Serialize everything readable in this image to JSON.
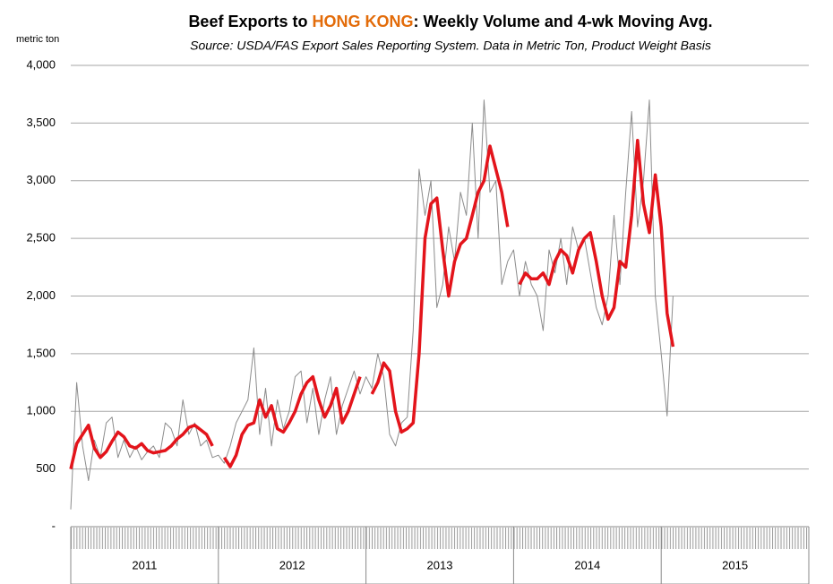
{
  "chart_data": {
    "type": "line",
    "title": [
      "Beef Exports to ",
      "HONG KONG",
      ":  Weekly Volume and 4-wk Moving Avg."
    ],
    "subtitle": "Source: USDA/FAS Export Sales Reporting System.  Data in Metric Ton, Product Weight Basis",
    "y_label": "metric ton",
    "x": [
      2011,
      2011.04,
      2011.08,
      2011.12,
      2011.16,
      2011.2,
      2011.24,
      2011.28,
      2011.32,
      2011.36,
      2011.4,
      2011.44,
      2011.48,
      2011.52,
      2011.56,
      2011.6,
      2011.64,
      2011.68,
      2011.72,
      2011.76,
      2011.8,
      2011.84,
      2011.88,
      2011.92,
      2011.96,
      2012,
      2012.04,
      2012.08,
      2012.12,
      2012.16,
      2012.2,
      2012.24,
      2012.28,
      2012.32,
      2012.36,
      2012.4,
      2012.44,
      2012.48,
      2012.52,
      2012.56,
      2012.6,
      2012.64,
      2012.68,
      2012.72,
      2012.76,
      2012.8,
      2012.84,
      2012.88,
      2012.92,
      2012.96,
      2013,
      2013.04,
      2013.08,
      2013.12,
      2013.16,
      2013.2,
      2013.24,
      2013.28,
      2013.32,
      2013.36,
      2013.4,
      2013.44,
      2013.48,
      2013.52,
      2013.56,
      2013.6,
      2013.64,
      2013.68,
      2013.72,
      2013.76,
      2013.8,
      2013.84,
      2013.88,
      2013.92,
      2013.96,
      2014,
      2014.04,
      2014.08,
      2014.12,
      2014.16,
      2014.2,
      2014.24,
      2014.28,
      2014.32,
      2014.36,
      2014.4,
      2014.44,
      2014.48,
      2014.52,
      2014.56,
      2014.6,
      2014.64,
      2014.68,
      2014.72,
      2014.76,
      2014.8,
      2014.84,
      2014.88,
      2014.92,
      2014.96,
      2015,
      2015.04,
      2015.08
    ],
    "series": [
      {
        "color": "#8c8c8c",
        "width": 1,
        "values": [
          150,
          1250,
          700,
          400,
          750,
          600,
          900,
          950,
          600,
          750,
          600,
          700,
          580,
          650,
          700,
          600,
          900,
          850,
          700,
          1100,
          800,
          900,
          700,
          750,
          600,
          620,
          550,
          700,
          900,
          1000,
          1100,
          1550,
          800,
          1200,
          700,
          1100,
          850,
          1000,
          1300,
          1350,
          900,
          1200,
          800,
          1100,
          1300,
          800,
          1050,
          1200,
          1350,
          1150,
          1300,
          1200,
          1500,
          1300,
          800,
          700,
          900,
          950,
          1700,
          3100,
          2700,
          3000,
          1900,
          2100,
          2600,
          2300,
          2900,
          2700,
          3500,
          2500,
          3700,
          2900,
          3000,
          2100,
          2300,
          2400,
          2000,
          2300,
          2100,
          2000,
          1700,
          2400,
          2200,
          2500,
          2100,
          2600,
          2400,
          2500,
          2200,
          1900,
          1750,
          2000,
          2700,
          2100,
          2900,
          3600,
          2600,
          3000,
          3700,
          2000,
          1500,
          960,
          2000
        ]
      },
      {
        "color": "#e3141b",
        "width": 3.5,
        "values": [
          500,
          720,
          800,
          880,
          680,
          600,
          650,
          740,
          820,
          780,
          700,
          680,
          720,
          660,
          640,
          650,
          660,
          700,
          760,
          800,
          860,
          880,
          840,
          800,
          700,
          null,
          600,
          520,
          620,
          800,
          880,
          900,
          1100,
          950,
          1050,
          850,
          820,
          900,
          1000,
          1150,
          1250,
          1300,
          1100,
          950,
          1050,
          1200,
          900,
          1000,
          1150,
          1300,
          null,
          1150,
          1250,
          1420,
          1350,
          1000,
          820,
          850,
          900,
          1500,
          2500,
          2800,
          2850,
          2400,
          2000,
          2300,
          2450,
          2500,
          2700,
          2900,
          3000,
          3300,
          3100,
          2900,
          2600,
          null,
          2100,
          2200,
          2150,
          2150,
          2200,
          2100,
          2300,
          2400,
          2350,
          2200,
          2400,
          2500,
          2550,
          2300,
          2000,
          1800,
          1900,
          2300,
          2250,
          2700,
          3350,
          2800,
          2550,
          3050,
          2600,
          1850,
          1560
        ]
      }
    ],
    "xlim": [
      2011,
      2016
    ],
    "xticks": [
      2011,
      2012,
      2013,
      2014,
      2015,
      2016
    ],
    "x_groups": [
      "2011",
      "2012",
      "2013",
      "2014",
      "2015"
    ],
    "ylim": [
      0,
      4000
    ],
    "yticks": [
      {
        "value": 0,
        "label": "-"
      },
      500,
      {
        "value": 1000,
        "label": "1,000"
      },
      {
        "value": 1500,
        "label": "1,500"
      },
      {
        "value": 2000,
        "label": "2,000"
      },
      {
        "value": 2500,
        "label": "2,500"
      },
      {
        "value": 3000,
        "label": "3,000"
      },
      {
        "value": 3500,
        "label": "3,500"
      },
      {
        "value": 4000,
        "label": "4,000"
      }
    ],
    "grid": true
  }
}
